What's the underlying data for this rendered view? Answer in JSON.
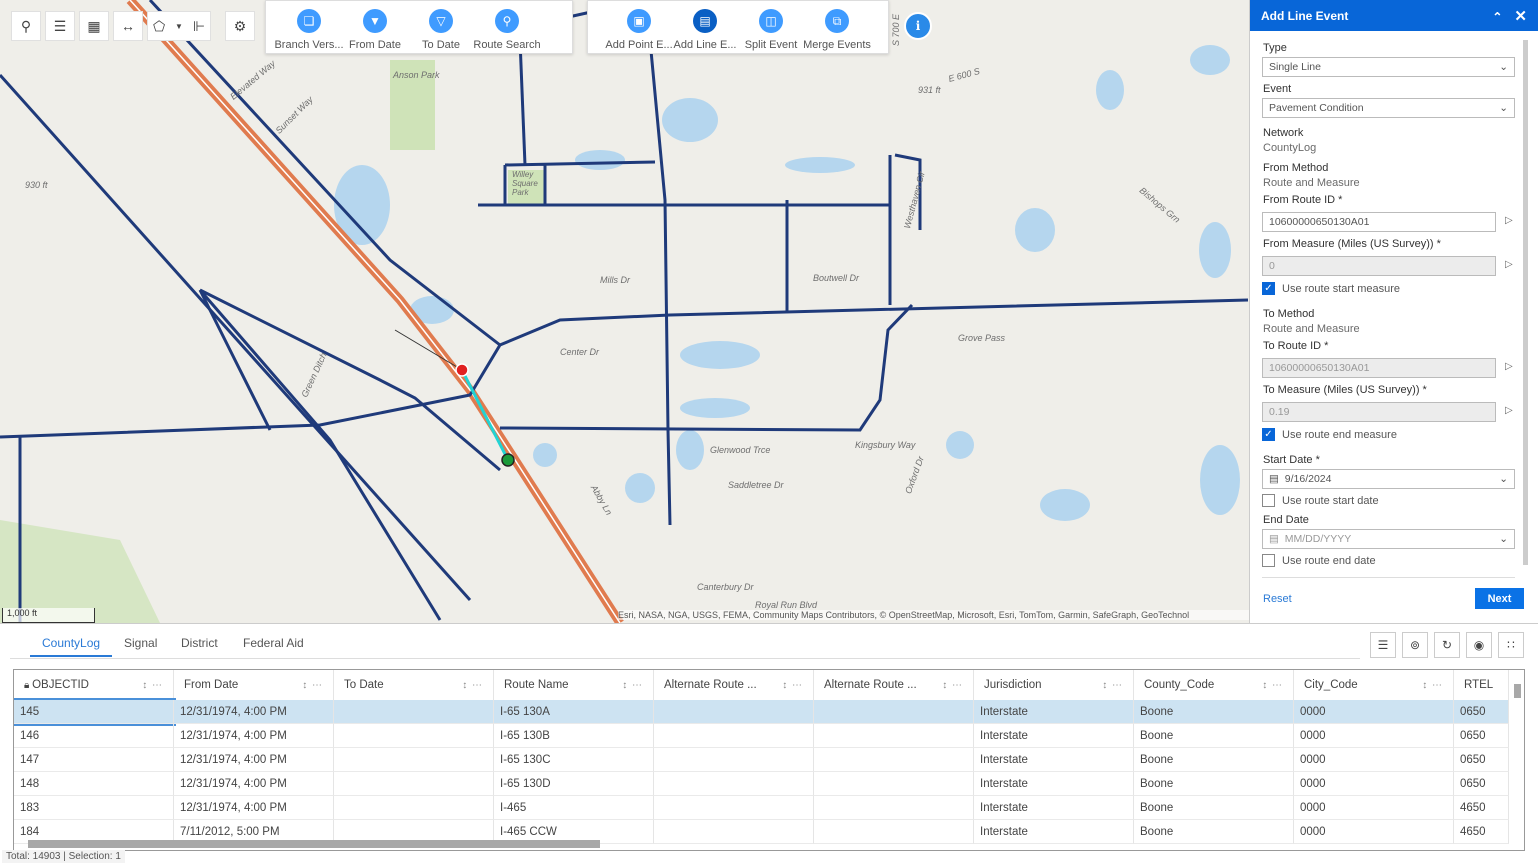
{
  "toolbar": {
    "left_tools": [
      {
        "icon": "search-icon"
      },
      {
        "icon": "layers-icon"
      },
      {
        "icon": "basemap-icon"
      },
      {
        "icon": "measure-icon"
      },
      {
        "icon": "select-icon"
      },
      {
        "icon": "clear-selection-icon"
      },
      {
        "icon": "identify-icon"
      }
    ],
    "group1": [
      {
        "label": "Branch Vers...",
        "icon": "branch-versions-icon"
      },
      {
        "label": "From Date",
        "icon": "filter-icon"
      },
      {
        "label": "To Date",
        "icon": "filter-icon"
      },
      {
        "label": "Route Search",
        "icon": "route-search-icon"
      }
    ],
    "group2": [
      {
        "label": "Add Point E...",
        "icon": "add-point-event-icon"
      },
      {
        "label": "Add Line E...",
        "icon": "add-line-event-icon",
        "active": true
      },
      {
        "label": "Split Event",
        "icon": "split-event-icon"
      },
      {
        "label": "Merge Events",
        "icon": "merge-events-icon"
      }
    ],
    "info_icon": "info-icon"
  },
  "map": {
    "labels": [
      "Anson Park",
      "Willey Square Park",
      "Center Dr",
      "Mills Dr",
      "Boutwell Dr",
      "Grove Pass",
      "Kingsbury Way",
      "Glenwood Trce",
      "Saddletree Dr",
      "Canterbury Dr",
      "Royal Run Blvd",
      "Sunset Way",
      "Elevated Way",
      "Westhaven Cir",
      "Bishops Grn",
      "Green Ditch",
      "Abby Ln",
      "Oxford Dr",
      "930 ft",
      "931 ft",
      "E 600 S",
      "S 700 E"
    ],
    "scale": "1,000 ft",
    "attribution": "Esri, NASA, NGA, USGS, FEMA, Community Maps Contributors, © OpenStreetMap, Microsoft, Esri, TomTom, Garmin, SafeGraph, GeoTechnol",
    "colors": {
      "roads": "#1f3a7a",
      "highway": "#e07b4f",
      "selected_segment": "#22d3d3",
      "start_point": "#e02020",
      "end_point": "#1a9a3a",
      "water": "#b5d6ee",
      "park": "#cfe3b8"
    }
  },
  "panel": {
    "title": "Add Line Event",
    "type_label": "Type",
    "type_value": "Single Line",
    "event_label": "Event",
    "event_value": "Pavement Condition",
    "network_label": "Network",
    "network_value": "CountyLog",
    "from_method_label": "From Method",
    "from_method_value": "Route and Measure",
    "from_route_label": "From Route ID *",
    "from_route_value": "10600000650130A01",
    "from_measure_label": "From Measure (Miles (US Survey)) *",
    "from_measure_value": "0",
    "use_start_measure": {
      "label": "Use route start measure",
      "checked": true
    },
    "to_method_label": "To Method",
    "to_method_value": "Route and Measure",
    "to_route_label": "To Route ID *",
    "to_route_value": "10600000650130A01",
    "to_measure_label": "To Measure (Miles (US Survey)) *",
    "to_measure_value": "0.19",
    "use_end_measure": {
      "label": "Use route end measure",
      "checked": true
    },
    "start_date_label": "Start Date *",
    "start_date_value": "9/16/2024",
    "use_start_date": {
      "label": "Use route start date",
      "checked": false
    },
    "end_date_label": "End Date",
    "end_date_placeholder": "MM/DD/YYYY",
    "use_end_date": {
      "label": "Use route end date",
      "checked": false
    },
    "reset": "Reset",
    "next": "Next"
  },
  "table": {
    "tabs": [
      "CountyLog",
      "Signal",
      "District",
      "Federal Aid"
    ],
    "active_tab": "CountyLog",
    "tools": [
      "show-selected-icon",
      "clear-selection-icon",
      "refresh-icon",
      "toggle-columns-icon",
      "options-icon"
    ],
    "columns": [
      "OBJECTID",
      "From Date",
      "To Date",
      "Route Name",
      "Alternate Route ...",
      "Alternate Route ...",
      "Jurisdiction",
      "County_Code",
      "City_Code",
      "RTEL"
    ],
    "rows": [
      [
        "145",
        "12/31/1974, 4:00 PM",
        "",
        "I-65 130A",
        "",
        "",
        "Interstate",
        "Boone",
        "0000",
        "0650"
      ],
      [
        "146",
        "12/31/1974, 4:00 PM",
        "",
        "I-65 130B",
        "",
        "",
        "Interstate",
        "Boone",
        "0000",
        "0650"
      ],
      [
        "147",
        "12/31/1974, 4:00 PM",
        "",
        "I-65 130C",
        "",
        "",
        "Interstate",
        "Boone",
        "0000",
        "0650"
      ],
      [
        "148",
        "12/31/1974, 4:00 PM",
        "",
        "I-65 130D",
        "",
        "",
        "Interstate",
        "Boone",
        "0000",
        "0650"
      ],
      [
        "183",
        "12/31/1974, 4:00 PM",
        "",
        "I-465",
        "",
        "",
        "Interstate",
        "Boone",
        "0000",
        "4650"
      ],
      [
        "184",
        "7/11/2012, 5:00 PM",
        "",
        "I-465 CCW",
        "",
        "",
        "Interstate",
        "Boone",
        "0000",
        "4650"
      ]
    ],
    "selected_row": 0,
    "status": "Total: 14903 | Selection: 1"
  }
}
